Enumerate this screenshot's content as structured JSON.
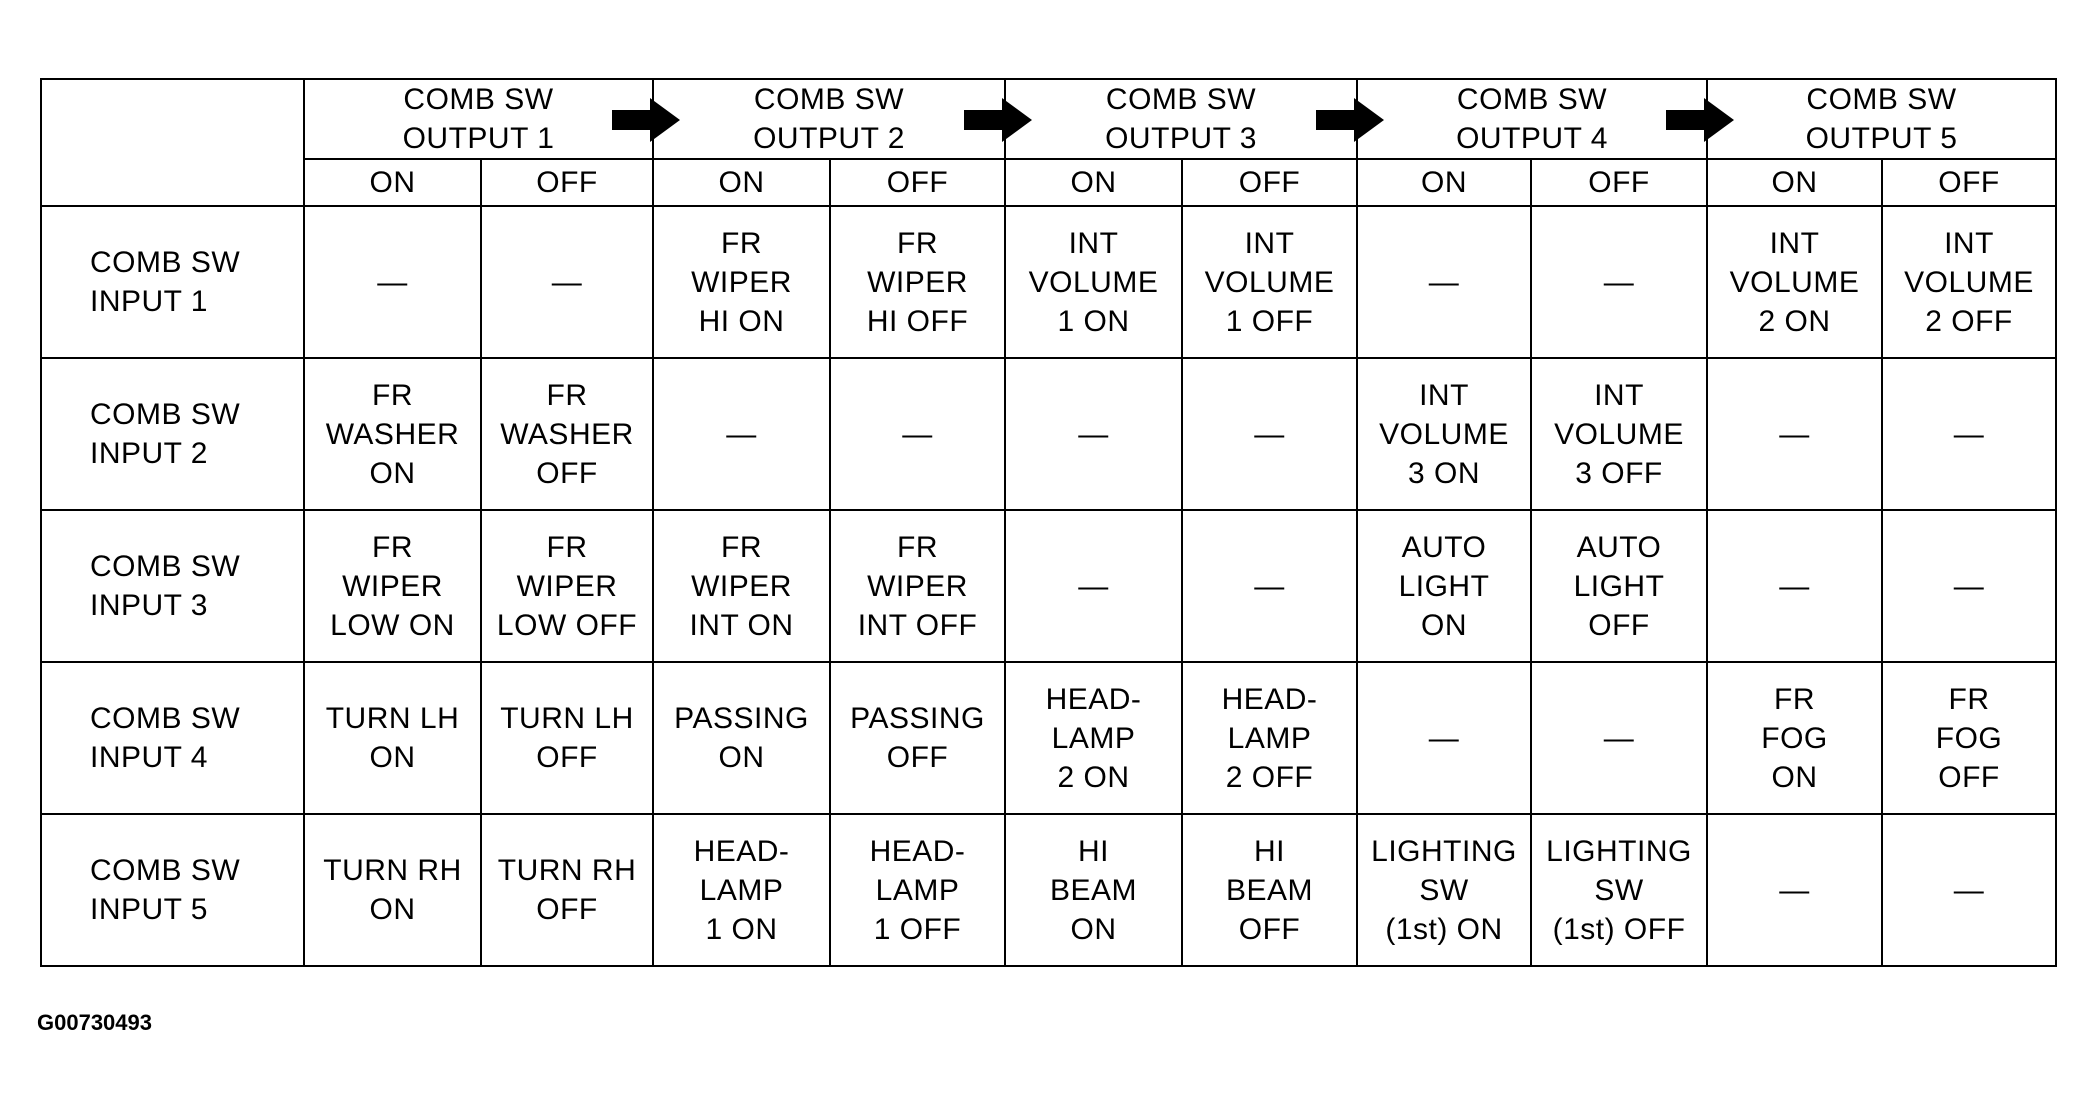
{
  "outputs": [
    "COMB SW\nOUTPUT 1",
    "COMB SW\nOUTPUT 2",
    "COMB SW\nOUTPUT 3",
    "COMB SW\nOUTPUT 4",
    "COMB SW\nOUTPUT 5"
  ],
  "states": [
    "ON",
    "OFF"
  ],
  "rows": [
    {
      "label": "COMB SW\nINPUT 1",
      "cells": [
        "—",
        "—",
        "FR\nWIPER\nHI ON",
        "FR\nWIPER\nHI OFF",
        "INT\nVOLUME\n1 ON",
        "INT\nVOLUME\n1 OFF",
        "—",
        "—",
        "INT\nVOLUME\n2 ON",
        "INT\nVOLUME\n2 OFF"
      ]
    },
    {
      "label": "COMB SW\nINPUT 2",
      "cells": [
        "FR\nWASHER\nON",
        "FR\nWASHER\nOFF",
        "—",
        "—",
        "—",
        "—",
        "INT\nVOLUME\n3 ON",
        "INT\nVOLUME\n3 OFF",
        "—",
        "—"
      ]
    },
    {
      "label": "COMB SW\nINPUT 3",
      "cells": [
        "FR\nWIPER\nLOW ON",
        "FR\nWIPER\nLOW OFF",
        "FR\nWIPER\nINT ON",
        "FR\nWIPER\nINT OFF",
        "—",
        "—",
        "AUTO\nLIGHT\nON",
        "AUTO\nLIGHT\nOFF",
        "—",
        "—"
      ]
    },
    {
      "label": "COMB SW\nINPUT 4",
      "cells": [
        "TURN LH\nON",
        "TURN LH\nOFF",
        "PASSING\nON",
        "PASSING\nOFF",
        "HEAD-\nLAMP\n2 ON",
        "HEAD-\nLAMP\n2 OFF",
        "—",
        "—",
        "FR\nFOG\nON",
        "FR\nFOG\nOFF"
      ]
    },
    {
      "label": "COMB SW\nINPUT 5",
      "cells": [
        "TURN RH\nON",
        "TURN RH\nOFF",
        "HEAD-\nLAMP\n1 ON",
        "HEAD-\nLAMP\n1 OFF",
        "HI\nBEAM\nON",
        "HI\nBEAM\nOFF",
        "LIGHTING\nSW\n(1st) ON",
        "LIGHTING\nSW\n(1st) OFF",
        "—",
        "—"
      ]
    }
  ],
  "arrow_icon": "right-arrow-icon",
  "caption": "G00730493"
}
